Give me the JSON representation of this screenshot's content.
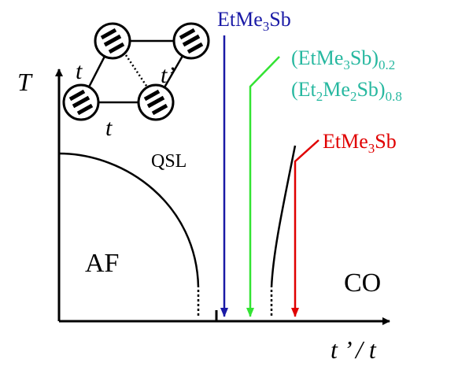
{
  "axes": {
    "y_label": "T",
    "x_label": "t ’ / t"
  },
  "lattice": {
    "labels": [
      "t",
      "t’",
      "t"
    ]
  },
  "regions": [
    "QSL",
    "AF",
    "CO"
  ],
  "compounds": [
    {
      "name": [
        "EtMe",
        "3",
        "Sb"
      ]
    },
    {
      "name": [
        "(EtMe",
        "3",
        "Sb)",
        "0.2"
      ]
    },
    {
      "name": [
        "(Et",
        "2",
        "Me",
        "2",
        "Sb)",
        "0.8"
      ]
    },
    {
      "name": [
        "EtMe",
        "3",
        "Sb"
      ]
    }
  ]
}
